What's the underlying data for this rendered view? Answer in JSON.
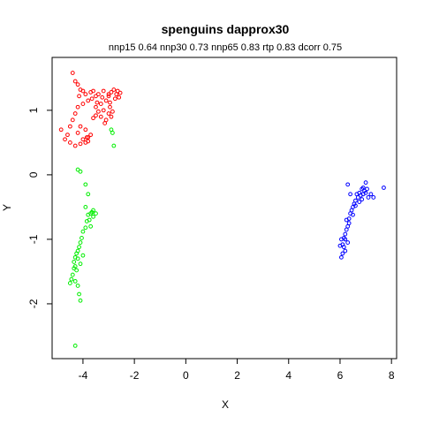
{
  "chart_data": {
    "type": "scatter",
    "title": "spenguins dapprox30",
    "subtitle": "nnp15 0.64 nnp30 0.73 nnp65 0.83 rtp 0.83 dcorr 0.75",
    "xlabel": "X",
    "ylabel": "Y",
    "xlim": [
      -5.2,
      8.2
    ],
    "ylim": [
      -2.85,
      1.82
    ],
    "xticks": [
      -4,
      -2,
      0,
      2,
      4,
      6,
      8
    ],
    "yticks": [
      -2,
      -1,
      0,
      1
    ],
    "grid": false,
    "legend": "none",
    "series": [
      {
        "color": "#ff0000",
        "points": [
          [
            -4.4,
            1.58
          ],
          [
            -4.3,
            1.45
          ],
          [
            -4.2,
            1.4
          ],
          [
            -4.1,
            1.32
          ],
          [
            -4.0,
            1.3
          ],
          [
            -3.9,
            1.25
          ],
          [
            -3.7,
            1.28
          ],
          [
            -3.6,
            1.3
          ],
          [
            -3.5,
            1.22
          ],
          [
            -3.4,
            1.25
          ],
          [
            -3.2,
            1.3
          ],
          [
            -3.0,
            1.25
          ],
          [
            -2.9,
            1.28
          ],
          [
            -2.8,
            1.32
          ],
          [
            -2.7,
            1.25
          ],
          [
            -2.6,
            1.2
          ],
          [
            -2.65,
            1.3
          ],
          [
            -2.75,
            1.18
          ],
          [
            -3.1,
            1.15
          ],
          [
            -3.3,
            1.1
          ],
          [
            -3.5,
            1.05
          ],
          [
            -3.4,
            0.98
          ],
          [
            -3.2,
            1.0
          ],
          [
            -3.0,
            0.95
          ],
          [
            -2.9,
            0.9
          ],
          [
            -3.1,
            0.85
          ],
          [
            -3.3,
            0.9
          ],
          [
            -3.5,
            0.92
          ],
          [
            -3.6,
            0.88
          ],
          [
            -3.8,
            1.15
          ],
          [
            -4.0,
            1.1
          ],
          [
            -4.2,
            1.05
          ],
          [
            -4.3,
            0.95
          ],
          [
            -4.4,
            0.85
          ],
          [
            -4.5,
            0.75
          ],
          [
            -4.6,
            0.62
          ],
          [
            -4.7,
            0.55
          ],
          [
            -4.5,
            0.5
          ],
          [
            -4.3,
            0.45
          ],
          [
            -4.1,
            0.48
          ],
          [
            -4.0,
            0.55
          ],
          [
            -3.9,
            0.5
          ],
          [
            -3.8,
            0.58
          ],
          [
            -3.7,
            0.62
          ],
          [
            -3.9,
            0.7
          ],
          [
            -4.1,
            0.75
          ],
          [
            -4.2,
            0.65
          ],
          [
            -4.85,
            0.7
          ],
          [
            -3.8,
            0.52
          ],
          [
            -3.85,
            0.58
          ],
          [
            -2.95,
            1.05
          ],
          [
            -2.85,
            0.98
          ],
          [
            -3.25,
            1.2
          ],
          [
            -2.55,
            1.27
          ],
          [
            -4.15,
            1.22
          ],
          [
            -3.65,
            1.18
          ],
          [
            -3.45,
            1.12
          ],
          [
            -3.15,
            0.8
          ],
          [
            -2.95,
            1.12
          ],
          [
            -3.0,
            1.22
          ]
        ]
      },
      {
        "color": "#00ee00",
        "points": [
          [
            -4.2,
            0.08
          ],
          [
            -4.1,
            0.05
          ],
          [
            -3.9,
            -0.15
          ],
          [
            -3.8,
            -0.3
          ],
          [
            -3.6,
            -0.55
          ],
          [
            -3.5,
            -0.6
          ],
          [
            -3.6,
            -0.65
          ],
          [
            -3.7,
            -0.6
          ],
          [
            -3.8,
            -0.62
          ],
          [
            -3.75,
            -0.7
          ],
          [
            -3.85,
            -0.72
          ],
          [
            -3.9,
            -0.82
          ],
          [
            -4.0,
            -0.88
          ],
          [
            -4.05,
            -0.98
          ],
          [
            -4.1,
            -1.05
          ],
          [
            -4.15,
            -1.12
          ],
          [
            -4.2,
            -1.18
          ],
          [
            -4.25,
            -1.22
          ],
          [
            -4.3,
            -1.28
          ],
          [
            -4.35,
            -1.35
          ],
          [
            -4.3,
            -1.42
          ],
          [
            -4.25,
            -1.48
          ],
          [
            -4.4,
            -1.55
          ],
          [
            -4.45,
            -1.62
          ],
          [
            -4.5,
            -1.68
          ],
          [
            -4.3,
            -1.65
          ],
          [
            -4.2,
            -1.72
          ],
          [
            -4.15,
            -1.85
          ],
          [
            -4.1,
            -1.95
          ],
          [
            -4.3,
            -2.65
          ],
          [
            -2.9,
            0.7
          ],
          [
            -2.85,
            0.65
          ],
          [
            -2.8,
            0.45
          ],
          [
            -3.9,
            -0.5
          ],
          [
            -3.7,
            -0.8
          ],
          [
            -4.0,
            -1.25
          ],
          [
            -4.1,
            -1.38
          ],
          [
            -4.35,
            -1.45
          ],
          [
            -4.2,
            -1.3
          ],
          [
            -3.65,
            -0.58
          ]
        ]
      },
      {
        "color": "#0000ff",
        "points": [
          [
            6.05,
            -1.28
          ],
          [
            6.1,
            -1.22
          ],
          [
            6.2,
            -1.18
          ],
          [
            6.15,
            -1.12
          ],
          [
            6.1,
            -1.08
          ],
          [
            6.0,
            -1.1
          ],
          [
            6.05,
            -1.0
          ],
          [
            6.15,
            -0.98
          ],
          [
            6.2,
            -0.92
          ],
          [
            6.25,
            -0.85
          ],
          [
            6.3,
            -0.8
          ],
          [
            6.35,
            -0.75
          ],
          [
            6.25,
            -0.7
          ],
          [
            6.35,
            -0.68
          ],
          [
            6.4,
            -0.6
          ],
          [
            6.45,
            -0.55
          ],
          [
            6.5,
            -0.5
          ],
          [
            6.55,
            -0.45
          ],
          [
            6.6,
            -0.4
          ],
          [
            6.7,
            -0.35
          ],
          [
            6.8,
            -0.32
          ],
          [
            6.9,
            -0.3
          ],
          [
            7.0,
            -0.28
          ],
          [
            6.95,
            -0.25
          ],
          [
            6.85,
            -0.22
          ],
          [
            6.75,
            -0.28
          ],
          [
            6.65,
            -0.3
          ],
          [
            7.1,
            -0.35
          ],
          [
            7.2,
            -0.3
          ],
          [
            7.3,
            -0.35
          ],
          [
            7.0,
            -0.12
          ],
          [
            6.3,
            -0.15
          ],
          [
            6.4,
            -0.3
          ],
          [
            7.7,
            -0.2
          ],
          [
            6.2,
            -1.0
          ],
          [
            6.3,
            -1.05
          ],
          [
            6.5,
            -0.62
          ],
          [
            6.6,
            -0.48
          ],
          [
            7.05,
            -0.22
          ],
          [
            6.85,
            -0.38
          ],
          [
            6.75,
            -0.42
          ],
          [
            6.9,
            -0.2
          ]
        ]
      }
    ]
  }
}
